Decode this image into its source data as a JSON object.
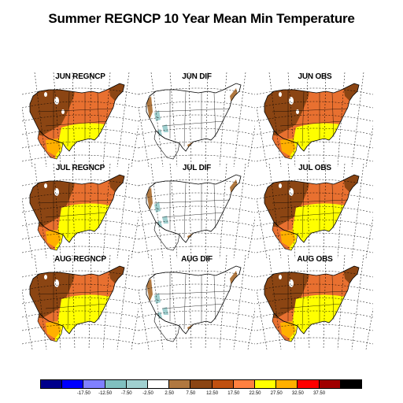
{
  "title": "Summer REGNCP 10 Year Mean Min Temperature",
  "panels": [
    {
      "label": "JUN REGNCP",
      "kind": "model",
      "month": "JUN"
    },
    {
      "label": "JUN DIF",
      "kind": "dif",
      "month": "JUN"
    },
    {
      "label": "JUN OBS",
      "kind": "obs",
      "month": "JUN"
    },
    {
      "label": "JUL REGNCP",
      "kind": "model",
      "month": "JUL"
    },
    {
      "label": "JUL DIF",
      "kind": "dif",
      "month": "JUL"
    },
    {
      "label": "JUL OBS",
      "kind": "obs",
      "month": "JUL"
    },
    {
      "label": "AUG REGNCP",
      "kind": "model",
      "month": "AUG"
    },
    {
      "label": "AUG DIF",
      "kind": "dif",
      "month": "AUG"
    },
    {
      "label": "AUG OBS",
      "kind": "obs",
      "month": "AUG"
    }
  ],
  "colorbar": {
    "colors": [
      "#00008b",
      "#0000ff",
      "#8080ff",
      "#80c0c0",
      "#a0d0d0",
      "#ffffff",
      "#b07840",
      "#8b4513",
      "#c05010",
      "#ff8040",
      "#ffff00",
      "#ffb000",
      "#ff0000",
      "#a00000",
      "#000000"
    ],
    "labels": [
      "-17.50",
      "-12.50",
      "-7.50",
      "-2.50",
      "2.50",
      "7.50",
      "12.50",
      "17.50",
      "22.50",
      "27.50",
      "32.50",
      "37.50"
    ]
  },
  "zones": {
    "mountain": "#8b4513",
    "plains": "#e87030",
    "south": "#ffff00",
    "hot": "#ffb000",
    "snow": "#ffffff",
    "dif_warm": "#b07840",
    "dif_cool": "#a0d0d0"
  }
}
